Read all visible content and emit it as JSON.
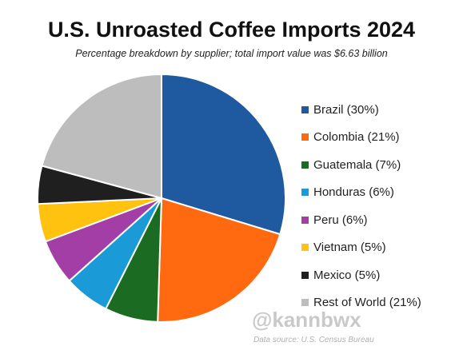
{
  "chart_data": {
    "type": "pie",
    "title": "U.S. Unroasted Coffee Imports 2024",
    "subtitle": "Percentage breakdown by supplier; total import value was $6.63 billion",
    "start_angle_deg": 0,
    "direction": "clockwise",
    "legend_position": "right",
    "slices": [
      {
        "label": "Brazil",
        "value": 30,
        "legend_text": "Brazil (30%)",
        "color": "#1f5aa0"
      },
      {
        "label": "Colombia",
        "value": 21,
        "legend_text": "Colombia (21%)",
        "color": "#ff6a10"
      },
      {
        "label": "Guatemala",
        "value": 7,
        "legend_text": "Guatemala (7%)",
        "color": "#1b6b22"
      },
      {
        "label": "Honduras",
        "value": 6,
        "legend_text": "Honduras (6%)",
        "color": "#1a9ad6"
      },
      {
        "label": "Peru",
        "value": 6,
        "legend_text": "Peru (6%)",
        "color": "#a23ea6"
      },
      {
        "label": "Vietnam",
        "value": 5,
        "legend_text": "Vietnam (5%)",
        "color": "#ffc20f"
      },
      {
        "label": "Mexico",
        "value": 5,
        "legend_text": "Mexico (5%)",
        "color": "#1f1f1f"
      },
      {
        "label": "Rest of World",
        "value": 21,
        "legend_text": "Rest of World (21%)",
        "color": "#bdbdbd"
      }
    ]
  },
  "watermark": "@kannbwx",
  "source_note": "Data source: U.S. Census Bureau"
}
